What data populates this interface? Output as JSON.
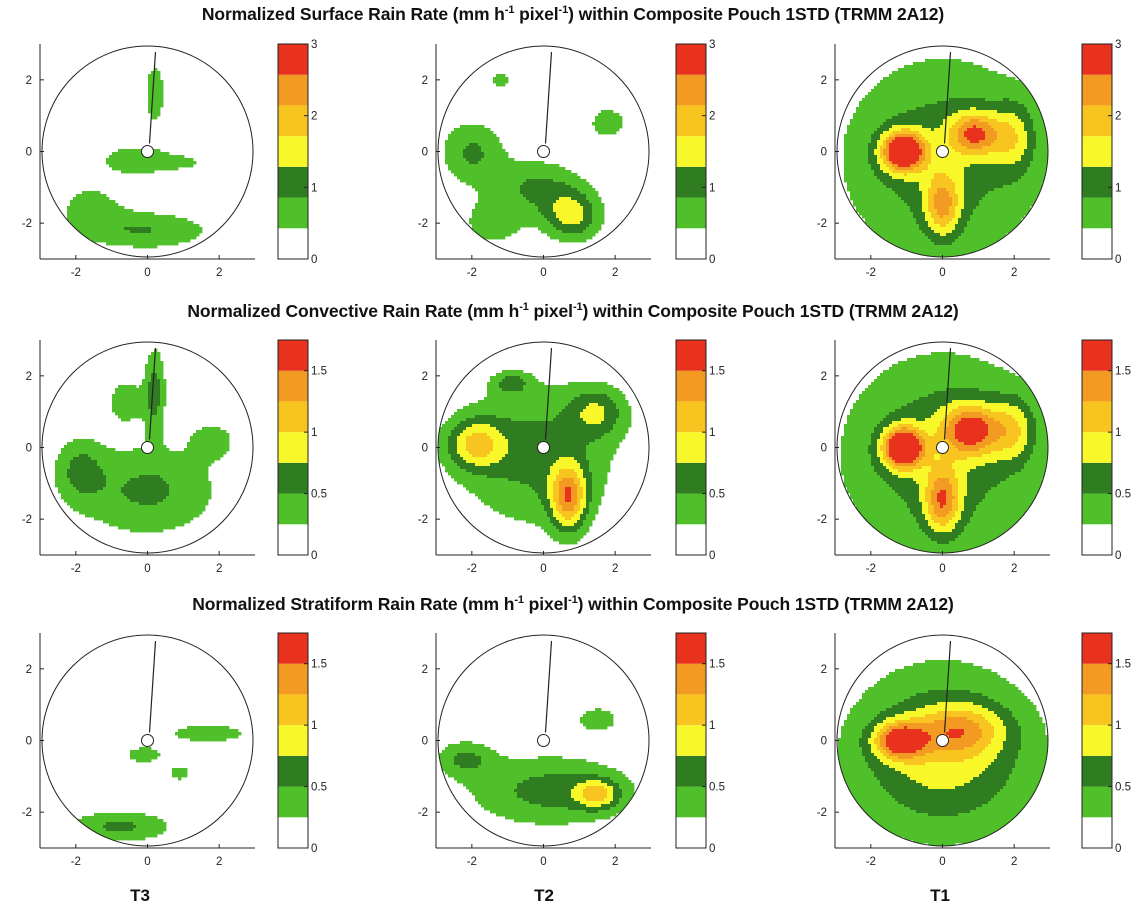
{
  "rows": [
    {
      "title_prefix": "Normalized Surface Rain Rate (mm h",
      "title_exp1": "-1",
      "title_mid": " pixel",
      "title_exp2": "-1",
      "title_suffix": ") within Composite Pouch 1STD (TRMM 2A12)",
      "colorbar_ticks": [
        "0",
        "1",
        "2",
        "3"
      ],
      "colorbar_max": 3
    },
    {
      "title_prefix": "Normalized Convective Rain Rate (mm h",
      "title_exp1": "-1",
      "title_mid": " pixel",
      "title_exp2": "-1",
      "title_suffix": ") within Composite Pouch 1STD (TRMM 2A12)",
      "colorbar_ticks": [
        "0",
        "0.5",
        "1",
        "1.5"
      ],
      "colorbar_max": 1.75
    },
    {
      "title_prefix": "Normalized Stratiform Rain Rate (mm h",
      "title_exp1": "-1",
      "title_mid": " pixel",
      "title_exp2": "-1",
      "title_suffix": ") within Composite Pouch 1STD (TRMM 2A12)",
      "colorbar_ticks": [
        "0",
        "0.5",
        "1",
        "1.5"
      ],
      "colorbar_max": 1.75
    }
  ],
  "columns": [
    "T3",
    "T2",
    "T1"
  ],
  "colors": {
    "level_colors": [
      "#ffffff",
      "#4fbf2a",
      "#2f7d20",
      "#f7f72a",
      "#f8c420",
      "#f39a22",
      "#e8321e"
    ],
    "outline": "#111111"
  },
  "chart_data": {
    "type": "contour",
    "panel_grid": "3x3",
    "x_ticks": [
      "-2",
      "0",
      "2"
    ],
    "y_ticks": [
      "2",
      "0",
      "-2"
    ],
    "xlim": [
      -3,
      3
    ],
    "ylim": [
      -3,
      3
    ],
    "filled_levels": 7,
    "panels": [
      {
        "row": 0,
        "col": 0,
        "peak": 1.05,
        "blobs": [
          [
            0,
            -2.2,
            1.8,
            0.55,
            0.85
          ],
          [
            -1.6,
            -1.5,
            1,
            0.8,
            0.55
          ],
          [
            0.2,
            1.6,
            0.35,
            1.1,
            0.65
          ],
          [
            -0.5,
            -0.2,
            0.9,
            0.45,
            0.55
          ],
          [
            0.8,
            -0.3,
            1.4,
            0.35,
            0.5
          ]
        ]
      },
      {
        "row": 0,
        "col": 1,
        "peak": 1.35,
        "blobs": [
          [
            -2,
            0,
            0.9,
            0.9,
            0.9
          ],
          [
            0.8,
            -1.8,
            0.8,
            0.7,
            1.35
          ],
          [
            -0.2,
            -1,
            1.3,
            0.8,
            0.9
          ],
          [
            1.8,
            0.8,
            0.7,
            0.6,
            0.6
          ],
          [
            -1.4,
            -2,
            0.8,
            0.6,
            0.75
          ],
          [
            -1.2,
            2,
            0.5,
            0.3,
            0.55
          ]
        ]
      },
      {
        "row": 0,
        "col": 2,
        "peak": 2.75,
        "blobs": [
          [
            -1.1,
            0,
            0.6,
            0.55,
            2.9
          ],
          [
            0.9,
            0.5,
            0.7,
            0.6,
            1.8
          ],
          [
            0,
            -1.5,
            0.5,
            0.9,
            1.5
          ],
          [
            0,
            -0.2,
            2.8,
            2.8,
            1.15
          ],
          [
            2,
            0.4,
            0.6,
            1,
            1
          ]
        ]
      },
      {
        "row": 1,
        "col": 0,
        "peak": 0.62,
        "blobs": [
          [
            0,
            -1.2,
            2,
            1.3,
            0.55
          ],
          [
            -1.9,
            -0.6,
            0.7,
            0.9,
            0.45
          ],
          [
            0.2,
            1.6,
            0.3,
            1.2,
            0.6
          ],
          [
            1.8,
            0.2,
            0.6,
            0.5,
            0.4
          ],
          [
            -0.6,
            1.3,
            0.5,
            0.6,
            0.45
          ]
        ]
      },
      {
        "row": 1,
        "col": 1,
        "peak": 1.15,
        "blobs": [
          [
            0.7,
            -1.4,
            0.5,
            0.9,
            1.2
          ],
          [
            -1.9,
            0.1,
            0.8,
            0.7,
            0.85
          ],
          [
            -0.2,
            -0.2,
            2.2,
            2,
            0.6
          ],
          [
            1.5,
            1,
            0.8,
            0.7,
            0.6
          ],
          [
            -0.9,
            1.8,
            0.5,
            0.3,
            0.5
          ]
        ]
      },
      {
        "row": 1,
        "col": 2,
        "peak": 1.6,
        "blobs": [
          [
            -1.1,
            0,
            0.55,
            0.55,
            1.75
          ],
          [
            0.8,
            0.5,
            0.8,
            0.7,
            1.2
          ],
          [
            0,
            -1.5,
            0.5,
            0.9,
            1
          ],
          [
            0,
            -0.2,
            2.8,
            2.8,
            0.7
          ],
          [
            2,
            0.5,
            0.6,
            0.9,
            0.62
          ]
        ]
      },
      {
        "row": 2,
        "col": 0,
        "peak": 0.5,
        "blobs": [
          [
            -0.8,
            -2.4,
            1.5,
            0.45,
            0.55
          ],
          [
            1.7,
            0.2,
            1.1,
            0.25,
            0.5
          ],
          [
            -0.1,
            -0.4,
            0.55,
            0.25,
            0.45
          ],
          [
            0.9,
            -0.9,
            0.3,
            0.25,
            0.4
          ]
        ]
      },
      {
        "row": 2,
        "col": 1,
        "peak": 0.75,
        "blobs": [
          [
            0.2,
            -1.4,
            2.3,
            1,
            0.6
          ],
          [
            1.5,
            -1.5,
            0.6,
            0.4,
            0.8
          ],
          [
            -2.2,
            -0.5,
            0.8,
            0.5,
            0.5
          ],
          [
            1.5,
            0.6,
            0.6,
            0.35,
            0.45
          ]
        ]
      },
      {
        "row": 2,
        "col": 2,
        "peak": 1.2,
        "blobs": [
          [
            -1.2,
            0,
            0.7,
            0.5,
            1.25
          ],
          [
            0.5,
            0.3,
            1.2,
            0.7,
            0.75
          ],
          [
            0,
            -0.6,
            2.4,
            1.9,
            0.55
          ],
          [
            0,
            0,
            2.9,
            2.9,
            0.35
          ]
        ]
      }
    ]
  }
}
